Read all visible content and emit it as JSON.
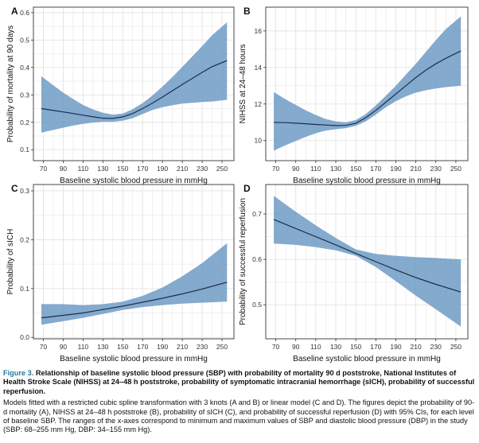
{
  "colors": {
    "band": "#6f9bc6",
    "line": "#1c2f4a",
    "grid": "#e3e3e3",
    "panel_border": "#333333",
    "figure_label": "#1f7a9c"
  },
  "caption": {
    "figure_label": "Figure 3.",
    "title": "Relationship of baseline systolic blood pressure (SBP) with probability of mortality 90 d poststroke, National Institutes of Health Stroke Scale (NIHSS) at 24–48 h poststroke, probability of symptomatic intracranial hemorrhage (sICH), probability of successful reperfusion.",
    "body": "Models fitted with a restricted cubic spline transformation with 3 knots (A and B) or linear model (C and D). The figures depict the probability of 90-d mortality (A), NIHSS at 24–48 h poststroke (B), probability of sICH (C), and probability of successful reperfusion (D) with 95% CIs, for each level of baseline SBP. The ranges of the x-axes correspond to minimum and maximum values of SBP and diastolic blood pressure (DBP) in the study (SBP: 68–255 mm Hg, DBP: 34–155 mm Hg)."
  },
  "chart_data": [
    {
      "panel": "A",
      "type": "line",
      "xlabel": "Baseline systolic blood pressure in mmHg",
      "ylabel": "Probability of mortality at 90 days",
      "xlim": [
        60,
        262
      ],
      "ylim": [
        0.06,
        0.62
      ],
      "xticks": [
        70,
        90,
        110,
        130,
        150,
        170,
        190,
        210,
        230,
        250
      ],
      "yticks": [
        0.1,
        0.2,
        0.3,
        0.4,
        0.5,
        0.6
      ],
      "yticklabels": [
        "0.1",
        "0.2",
        "0.3",
        "0.4",
        "0.5",
        "0.6"
      ],
      "grid": true,
      "x": [
        68,
        80,
        90,
        100,
        110,
        120,
        130,
        140,
        150,
        160,
        170,
        180,
        190,
        200,
        210,
        220,
        230,
        240,
        255
      ],
      "estimate": [
        0.25,
        0.243,
        0.238,
        0.232,
        0.226,
        0.22,
        0.215,
        0.214,
        0.22,
        0.232,
        0.25,
        0.27,
        0.292,
        0.315,
        0.338,
        0.36,
        0.382,
        0.403,
        0.425
      ],
      "lower": [
        0.162,
        0.172,
        0.18,
        0.188,
        0.194,
        0.199,
        0.202,
        0.202,
        0.206,
        0.215,
        0.23,
        0.245,
        0.255,
        0.262,
        0.268,
        0.271,
        0.274,
        0.276,
        0.282
      ],
      "upper": [
        0.368,
        0.335,
        0.308,
        0.285,
        0.263,
        0.247,
        0.235,
        0.228,
        0.232,
        0.248,
        0.27,
        0.298,
        0.33,
        0.365,
        0.402,
        0.44,
        0.478,
        0.518,
        0.565
      ]
    },
    {
      "panel": "B",
      "type": "line",
      "xlabel": "Baseline systolic blood pressure in mmHg",
      "ylabel": "NIHSS at 24–48 hours",
      "xlim": [
        60,
        262
      ],
      "ylim": [
        8.9,
        17.3
      ],
      "xticks": [
        70,
        90,
        110,
        130,
        150,
        170,
        190,
        210,
        230,
        250
      ],
      "yticks": [
        10,
        12,
        14,
        16
      ],
      "yticklabels": [
        "10",
        "12",
        "14",
        "16"
      ],
      "grid": true,
      "x": [
        68,
        80,
        90,
        100,
        110,
        120,
        130,
        140,
        150,
        160,
        170,
        180,
        190,
        200,
        210,
        220,
        230,
        240,
        255
      ],
      "estimate": [
        11.0,
        10.98,
        10.95,
        10.92,
        10.88,
        10.85,
        10.82,
        10.83,
        10.95,
        11.25,
        11.65,
        12.1,
        12.55,
        13.0,
        13.45,
        13.85,
        14.2,
        14.5,
        14.9
      ],
      "lower": [
        9.45,
        9.75,
        9.98,
        10.2,
        10.4,
        10.55,
        10.62,
        10.68,
        10.8,
        11.05,
        11.42,
        11.82,
        12.15,
        12.42,
        12.62,
        12.75,
        12.85,
        12.92,
        13.0
      ],
      "upper": [
        12.65,
        12.25,
        11.95,
        11.65,
        11.4,
        11.18,
        11.05,
        11.0,
        11.12,
        11.45,
        11.92,
        12.45,
        13.0,
        13.6,
        14.2,
        14.85,
        15.5,
        16.1,
        16.8
      ]
    },
    {
      "panel": "C",
      "type": "line",
      "xlabel": "Baseline systolic blood pressure in mmHg",
      "ylabel": "Probability of sICH",
      "xlim": [
        60,
        262
      ],
      "ylim": [
        -0.003,
        0.313
      ],
      "xticks": [
        70,
        90,
        110,
        130,
        150,
        170,
        190,
        210,
        230,
        250
      ],
      "yticks": [
        0.0,
        0.1,
        0.2,
        0.3
      ],
      "yticklabels": [
        "0.0",
        "0.1",
        "0.2",
        "0.3"
      ],
      "grid": true,
      "x": [
        68,
        90,
        110,
        130,
        150,
        170,
        190,
        210,
        230,
        255
      ],
      "estimate": [
        0.04,
        0.045,
        0.05,
        0.057,
        0.064,
        0.072,
        0.08,
        0.089,
        0.099,
        0.113
      ],
      "lower": [
        0.026,
        0.033,
        0.04,
        0.048,
        0.056,
        0.062,
        0.066,
        0.069,
        0.071,
        0.073
      ],
      "upper": [
        0.068,
        0.068,
        0.066,
        0.068,
        0.073,
        0.085,
        0.102,
        0.125,
        0.152,
        0.193
      ]
    },
    {
      "panel": "D",
      "type": "line",
      "xlabel": "Baseline systolic blood pressure in mmHg",
      "ylabel": "Probability of successful reperfusion",
      "xlim": [
        60,
        262
      ],
      "ylim": [
        0.425,
        0.765
      ],
      "xticks": [
        70,
        90,
        110,
        130,
        150,
        170,
        190,
        210,
        230,
        250
      ],
      "yticks": [
        0.5,
        0.6,
        0.7
      ],
      "yticklabels": [
        "0.5",
        "0.6",
        "0.7"
      ],
      "grid": true,
      "x": [
        68,
        90,
        110,
        130,
        150,
        170,
        190,
        210,
        230,
        255
      ],
      "estimate": [
        0.688,
        0.668,
        0.65,
        0.632,
        0.613,
        0.595,
        0.577,
        0.56,
        0.545,
        0.528
      ],
      "lower": [
        0.635,
        0.632,
        0.627,
        0.62,
        0.608,
        0.583,
        0.552,
        0.52,
        0.49,
        0.452
      ],
      "upper": [
        0.74,
        0.705,
        0.675,
        0.647,
        0.622,
        0.612,
        0.608,
        0.605,
        0.603,
        0.6
      ]
    }
  ]
}
